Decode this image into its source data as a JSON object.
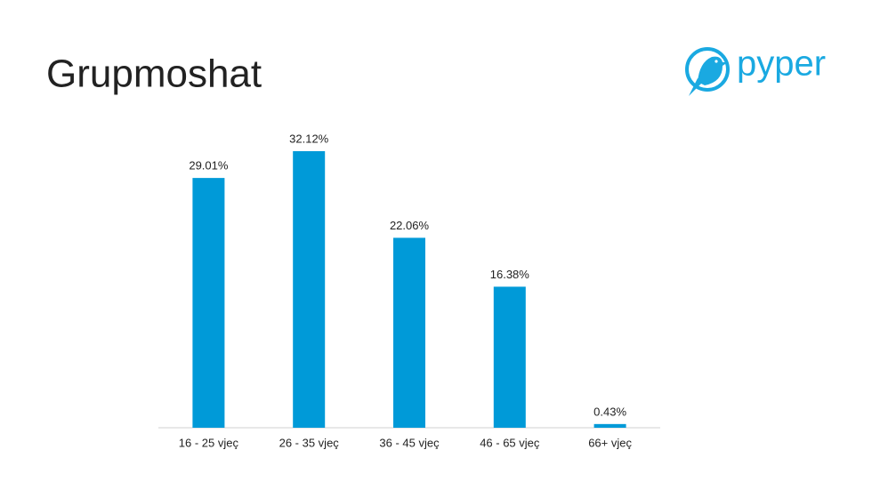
{
  "chart_data": {
    "type": "bar",
    "title": "Grupmoshat",
    "logo": "pyper",
    "categories": [
      "16 - 25 vjeç",
      "26 - 35 vjeç",
      "36 - 45 vjeç",
      "46 - 65 vjeç",
      "66+ vjeç"
    ],
    "values": [
      29.01,
      32.12,
      22.06,
      16.38,
      0.43
    ],
    "value_labels": [
      "29.01%",
      "32.12%",
      "22.06%",
      "16.38%",
      "0.43%"
    ],
    "color": "#009ad8"
  }
}
